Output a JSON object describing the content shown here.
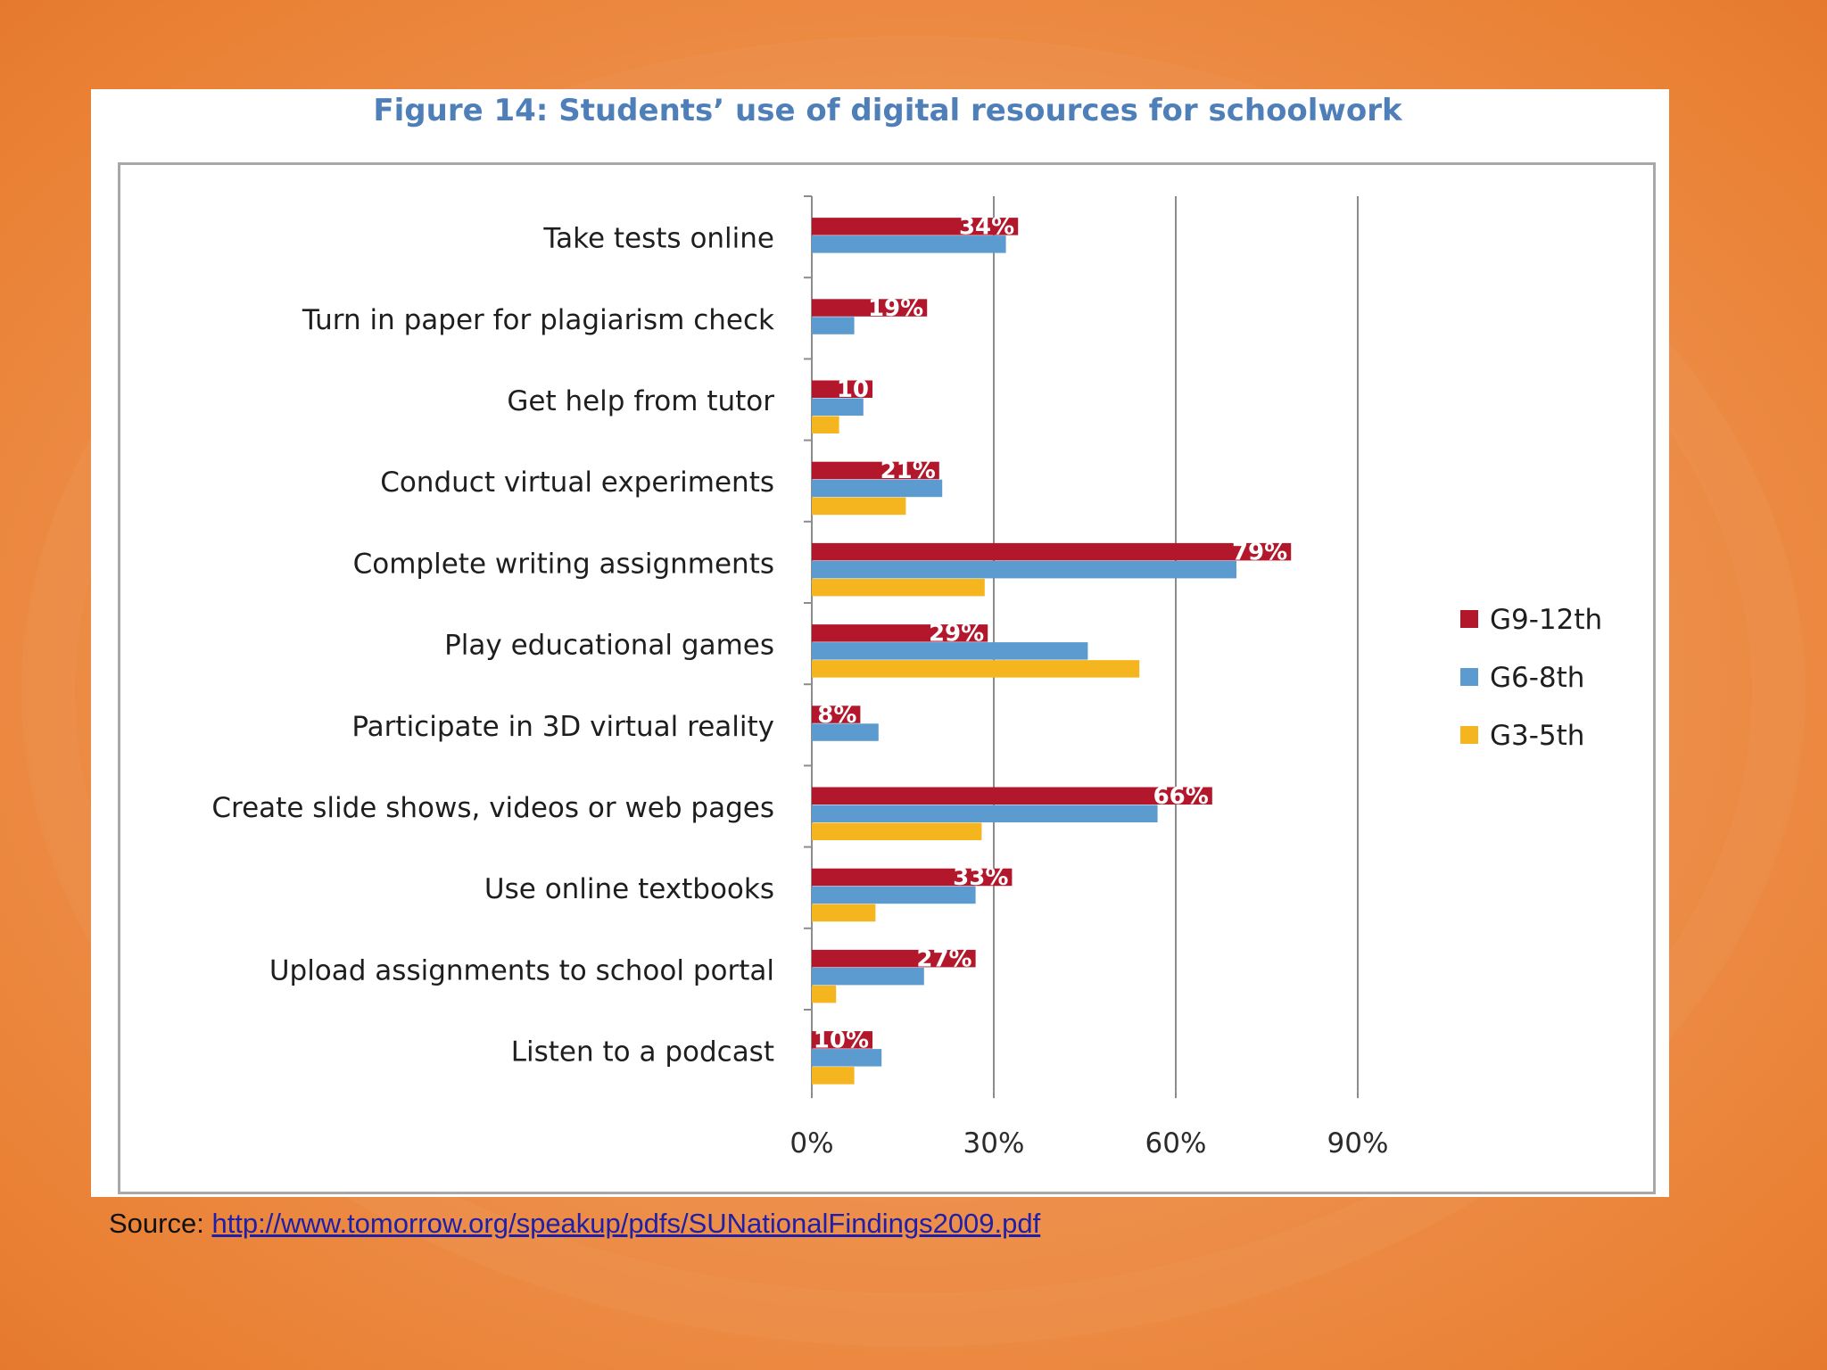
{
  "source": {
    "label": "Source: ",
    "link_text": "http://www.tomorrow.org/speakup/pdfs/SUNationalFindings2009.pdf"
  },
  "chart_data": {
    "type": "bar",
    "orientation": "horizontal",
    "title": "Figure 14: Students’ use of digital resources for schoolwork",
    "categories": [
      "Take tests online",
      "Turn in paper for plagiarism check",
      "Get help from tutor",
      "Conduct virtual experiments",
      "Complete writing assignments",
      "Play educational games",
      "Participate in 3D virtual reality",
      "Create slide shows, videos or web pages",
      "Use online textbooks",
      "Upload assignments to school portal",
      "Listen to a podcast"
    ],
    "series": [
      {
        "name": "G9-12th",
        "color": "#b3172c",
        "values": [
          34,
          19,
          10,
          21,
          79,
          29,
          8,
          66,
          33,
          27,
          10
        ],
        "labels": [
          "34%",
          "19%",
          "10",
          "21%",
          "79%",
          "29%",
          "8%",
          "66%",
          "33%",
          "27%",
          "10%"
        ]
      },
      {
        "name": "G6-8th",
        "color": "#5b9bd0",
        "values": [
          32,
          7,
          8.5,
          21.5,
          70,
          45.5,
          11,
          57,
          27,
          18.5,
          11.5
        ],
        "labels": []
      },
      {
        "name": "G3-5th",
        "color": "#f5b51f",
        "values": [
          null,
          null,
          4.5,
          15.5,
          28.5,
          54,
          null,
          28,
          10.5,
          4,
          7
        ],
        "labels": []
      }
    ],
    "x_ticks": [
      "0%",
      "30%",
      "60%",
      "90%"
    ],
    "xlim": [
      0,
      90
    ],
    "grid": "vertical major lines",
    "legend_position": "right"
  }
}
